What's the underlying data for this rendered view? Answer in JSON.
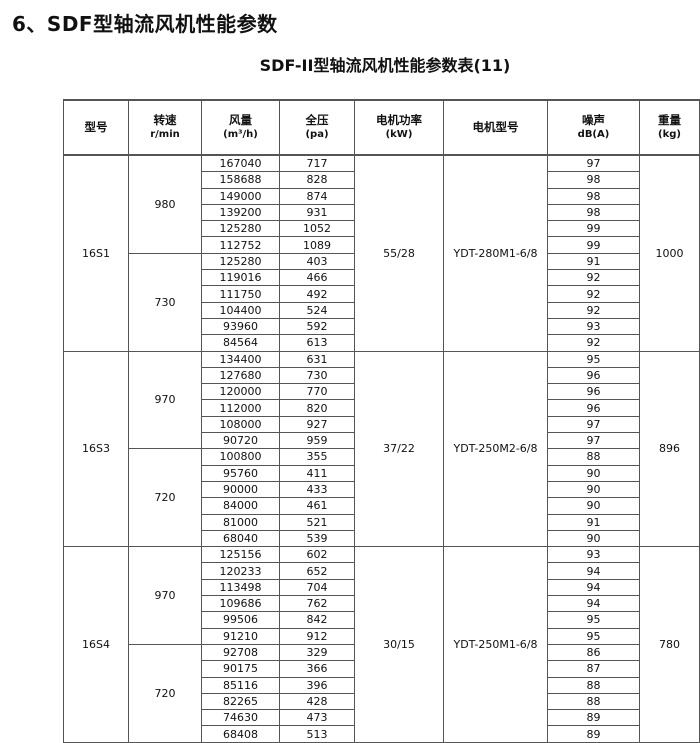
{
  "title": "6、SDF型轴流风机性能参数",
  "subtitle": "SDF-II型轴流风机性能参数表(11)",
  "headers": [
    {
      "l1": "型号",
      "l2": ""
    },
    {
      "l1": "转速",
      "l2": "r/min"
    },
    {
      "l1": "风量",
      "l2": "(m³/h)"
    },
    {
      "l1": "全压",
      "l2": "(pa)"
    },
    {
      "l1": "电机功率",
      "l2": "(kW)"
    },
    {
      "l1": "电机型号",
      "l2": ""
    },
    {
      "l1": "噪声",
      "l2": "dB(A)"
    },
    {
      "l1": "重量",
      "l2": "(kg)"
    }
  ],
  "groups": [
    {
      "model": "16S1",
      "power": "55/28",
      "motor": "YDT-280M1-6/8",
      "weight": "1000",
      "speeds": [
        {
          "rpm": "980",
          "rows": [
            [
              "167040",
              "717",
              "97"
            ],
            [
              "158688",
              "828",
              "98"
            ],
            [
              "149000",
              "874",
              "98"
            ],
            [
              "139200",
              "931",
              "98"
            ],
            [
              "125280",
              "1052",
              "99"
            ],
            [
              "112752",
              "1089",
              "99"
            ]
          ]
        },
        {
          "rpm": "730",
          "rows": [
            [
              "125280",
              "403",
              "91"
            ],
            [
              "119016",
              "466",
              "92"
            ],
            [
              "111750",
              "492",
              "92"
            ],
            [
              "104400",
              "524",
              "92"
            ],
            [
              "93960",
              "592",
              "93"
            ],
            [
              "84564",
              "613",
              "92"
            ]
          ]
        }
      ]
    },
    {
      "model": "16S3",
      "power": "37/22",
      "motor": "YDT-250M2-6/8",
      "weight": "896",
      "speeds": [
        {
          "rpm": "970",
          "rows": [
            [
              "134400",
              "631",
              "95"
            ],
            [
              "127680",
              "730",
              "96"
            ],
            [
              "120000",
              "770",
              "96"
            ],
            [
              "112000",
              "820",
              "96"
            ],
            [
              "108000",
              "927",
              "97"
            ],
            [
              "90720",
              "959",
              "97"
            ]
          ]
        },
        {
          "rpm": "720",
          "rows": [
            [
              "100800",
              "355",
              "88"
            ],
            [
              "95760",
              "411",
              "90"
            ],
            [
              "90000",
              "433",
              "90"
            ],
            [
              "84000",
              "461",
              "90"
            ],
            [
              "81000",
              "521",
              "91"
            ],
            [
              "68040",
              "539",
              "90"
            ]
          ]
        }
      ]
    },
    {
      "model": "16S4",
      "power": "30/15",
      "motor": "YDT-250M1-6/8",
      "weight": "780",
      "speeds": [
        {
          "rpm": "970",
          "rows": [
            [
              "125156",
              "602",
              "93"
            ],
            [
              "120233",
              "652",
              "94"
            ],
            [
              "113498",
              "704",
              "94"
            ],
            [
              "109686",
              "762",
              "94"
            ],
            [
              "99506",
              "842",
              "95"
            ],
            [
              "91210",
              "912",
              "95"
            ]
          ]
        },
        {
          "rpm": "720",
          "rows": [
            [
              "92708",
              "329",
              "86"
            ],
            [
              "90175",
              "366",
              "87"
            ],
            [
              "85116",
              "396",
              "88"
            ],
            [
              "82265",
              "428",
              "88"
            ],
            [
              "74630",
              "473",
              "89"
            ],
            [
              "68408",
              "513",
              "89"
            ]
          ]
        }
      ]
    }
  ]
}
